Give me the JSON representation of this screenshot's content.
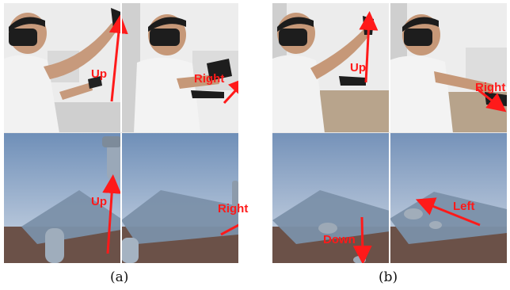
{
  "figure": {
    "parts": [
      {
        "caption": "(a)",
        "panels": [
          {
            "label": "Up",
            "kind": "photo"
          },
          {
            "label": "Right",
            "kind": "photo"
          },
          {
            "label": "Up",
            "kind": "render"
          },
          {
            "label": "Right",
            "kind": "render"
          }
        ]
      },
      {
        "caption": "(b)",
        "panels": [
          {
            "label": "Up",
            "kind": "photo"
          },
          {
            "label": "Right",
            "kind": "photo"
          },
          {
            "label": "Down",
            "kind": "render"
          },
          {
            "label": "Left",
            "kind": "render"
          }
        ]
      }
    ],
    "colors": {
      "arrow": "#ff1a1a",
      "sky": "#8fa9c8",
      "table_top": "#7a8fa8",
      "ground": "#6b5148",
      "wall": "#ededed",
      "headset": "#1d1d1d",
      "shirt": "#f1f1f1"
    }
  }
}
